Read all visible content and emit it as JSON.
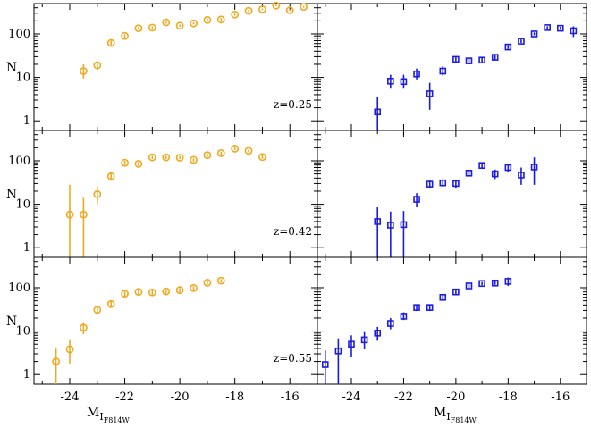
{
  "chart_data": {
    "type": "scatter",
    "layout": "3x2 grid, shared axes",
    "xlabel": {
      "main": "M",
      "sub": "I",
      "subsub": "F814W"
    },
    "ylabel": "N",
    "yscale": "log",
    "ylim": [
      0.6,
      500
    ],
    "y_ticks": [
      1,
      10,
      100
    ],
    "y_tick_labels": [
      "1",
      "10",
      "100"
    ],
    "xlim_left": [
      -25.3,
      -15.0
    ],
    "xlim_right": [
      -25.3,
      -15.0
    ],
    "x_ticks": [
      -24,
      -22,
      -20,
      -18,
      -16
    ],
    "x_tick_labels": [
      "-24",
      "-22",
      "-20",
      "-18",
      "-16"
    ],
    "colors": {
      "left": "#f0a91e",
      "right": "#1c1ce0"
    },
    "markers": {
      "left": "circle",
      "right": "square"
    },
    "rows": [
      {
        "label": "z=0.25",
        "left": {
          "x": [
            -23.5,
            -23.0,
            -22.5,
            -22.0,
            -21.5,
            -21.0,
            -20.5,
            -20.0,
            -19.5,
            -19.0,
            -18.5,
            -18.0,
            -17.5,
            -17.0,
            -16.5,
            -16.0,
            -15.5
          ],
          "y": [
            14,
            19,
            62,
            90,
            135,
            140,
            185,
            155,
            175,
            210,
            215,
            280,
            340,
            370,
            450,
            350,
            420
          ],
          "ylo": [
            9.5,
            15,
            55,
            82,
            125,
            130,
            172,
            145,
            165,
            195,
            200,
            265,
            325,
            355,
            430,
            335,
            400
          ],
          "yhi": [
            20,
            23,
            70,
            98,
            145,
            150,
            198,
            165,
            185,
            225,
            230,
            295,
            355,
            385,
            470,
            365,
            440
          ]
        },
        "right": {
          "x": [
            -23.0,
            -22.5,
            -22.0,
            -21.5,
            -21.0,
            -20.5,
            -20.0,
            -19.5,
            -19.0,
            -18.5,
            -18.0,
            -17.5,
            -17.0,
            -16.5,
            -16.0,
            -15.5
          ],
          "y": [
            1.6,
            8.2,
            8.0,
            12,
            4.2,
            14,
            26,
            24,
            25,
            29,
            50,
            68,
            100,
            140,
            135,
            118
          ],
          "ylo": [
            0.6,
            5.5,
            5.5,
            9,
            1.8,
            11,
            22,
            20,
            21,
            25,
            45,
            62,
            93,
            130,
            125,
            85
          ],
          "yhi": [
            3.5,
            11.5,
            11.5,
            16,
            7.5,
            18,
            30,
            28,
            29,
            34,
            55,
            75,
            108,
            150,
            145,
            150
          ]
        }
      },
      {
        "label": "z=0.42",
        "left": {
          "x": [
            -24.0,
            -23.5,
            -23.0,
            -22.5,
            -22.0,
            -21.5,
            -21.0,
            -20.5,
            -20.0,
            -19.5,
            -19.0,
            -18.5,
            -18.0,
            -17.5,
            -17.0
          ],
          "y": [
            5.8,
            5.8,
            17,
            44,
            90,
            85,
            120,
            120,
            118,
            105,
            135,
            150,
            190,
            170,
            122
          ],
          "ylo": [
            0.6,
            0.6,
            10,
            35,
            80,
            76,
            110,
            110,
            108,
            96,
            123,
            138,
            176,
            157,
            111
          ],
          "yhi": [
            28,
            14,
            26,
            54,
            100,
            94,
            130,
            130,
            128,
            114,
            147,
            162,
            204,
            183,
            133
          ]
        },
        "right": {
          "x": [
            -23.0,
            -22.5,
            -22.0,
            -21.5,
            -21.0,
            -20.5,
            -20.0,
            -19.5,
            -19.0,
            -18.5,
            -18.0,
            -17.5,
            -17.0
          ],
          "y": [
            4.0,
            3.3,
            3.4,
            13,
            29,
            31,
            30,
            52,
            78,
            50,
            70,
            47,
            72
          ],
          "ylo": [
            0.6,
            0.6,
            0.6,
            8.5,
            24,
            26,
            24,
            44,
            69,
            38,
            56,
            28,
            28
          ],
          "yhi": [
            8.5,
            6.8,
            7.0,
            18,
            35,
            37,
            37,
            61,
            88,
            63,
            85,
            70,
            120
          ]
        }
      },
      {
        "label": "z=0.55",
        "left": {
          "x": [
            -24.5,
            -24.0,
            -23.5,
            -23.0,
            -22.5,
            -22.0,
            -21.5,
            -21.0,
            -20.5,
            -20.0,
            -19.5,
            -19.0,
            -18.5
          ],
          "y": [
            2.0,
            3.8,
            12,
            31,
            42,
            73,
            80,
            78,
            82,
            88,
            98,
            130,
            145
          ],
          "ylo": [
            0.6,
            1.8,
            8.5,
            25,
            35,
            64,
            71,
            69,
            73,
            78,
            88,
            118,
            132
          ],
          "yhi": [
            4.0,
            6.5,
            16,
            37,
            49,
            82,
            89,
            87,
            91,
            98,
            108,
            142,
            158
          ]
        },
        "right": {
          "x": [
            -25.0,
            -24.5,
            -24.0,
            -23.5,
            -23.0,
            -22.5,
            -22.0,
            -21.5,
            -21.0,
            -20.5,
            -20.0,
            -19.5,
            -19.0,
            -18.5,
            -18.0
          ],
          "y": [
            1.7,
            3.5,
            5.0,
            6.3,
            9.0,
            15,
            22,
            35,
            35,
            60,
            80,
            110,
            125,
            128,
            140
          ],
          "ylo": [
            0.6,
            0.6,
            2.5,
            3.8,
            6.0,
            11,
            18,
            29,
            29,
            53,
            72,
            100,
            114,
            117,
            110
          ],
          "yhi": [
            3.6,
            6.8,
            8.0,
            9.5,
            12.5,
            20,
            27,
            41,
            41,
            68,
            88,
            120,
            136,
            140,
            172
          ]
        }
      }
    ]
  }
}
